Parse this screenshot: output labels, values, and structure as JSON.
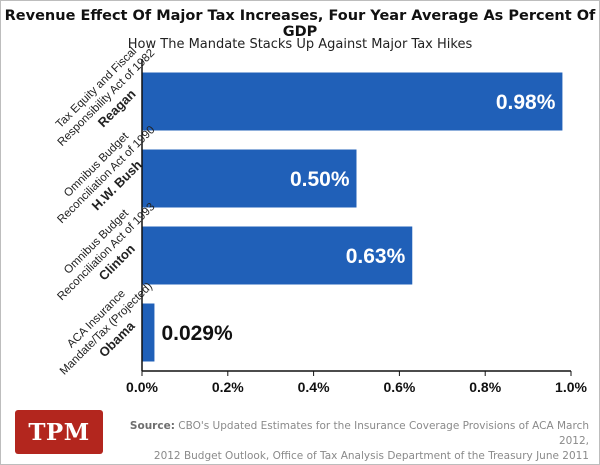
{
  "footer": {
    "logo_text": "TPM",
    "source_label": "Source:",
    "source_line1": "CBO's Updated Estimates for the Insurance Coverage Provisions of ACA March 2012,",
    "source_line2": "2012 Budget Outlook, Office of Tax Analysis Department of the Treasury June 2011"
  },
  "chart_data": {
    "type": "bar",
    "orientation": "horizontal",
    "title": "Revenue Effect Of Major Tax Increases, Four Year Average As Percent Of GDP",
    "subtitle": "How The Mandate Stacks Up Against Major Tax Hikes",
    "xlim": [
      0,
      1.0
    ],
    "xticks": [
      "0.0%",
      "0.2%",
      "0.4%",
      "0.6%",
      "0.8%",
      "1.0%"
    ],
    "grid": false,
    "bar_color": "#2060b8",
    "categories": [
      {
        "line1": "Tax Equity and Fiscal",
        "line2": "Responsibility Act of 1982",
        "president": "Reagan"
      },
      {
        "line1": "Omnibus Budget",
        "line2": "Reconciliation Act of 1990",
        "president": "H.W. Bush"
      },
      {
        "line1": "Omnibus Budget",
        "line2": "Reconciliation Act of 1993",
        "president": "Clinton"
      },
      {
        "line1": "ACA Insurance",
        "line2": "Mandate/Tax (Projected)",
        "president": "Obama"
      }
    ],
    "values": [
      0.98,
      0.5,
      0.63,
      0.029
    ],
    "data_labels": [
      "0.98%",
      "0.50%",
      "0.63%",
      "0.029%"
    ]
  }
}
